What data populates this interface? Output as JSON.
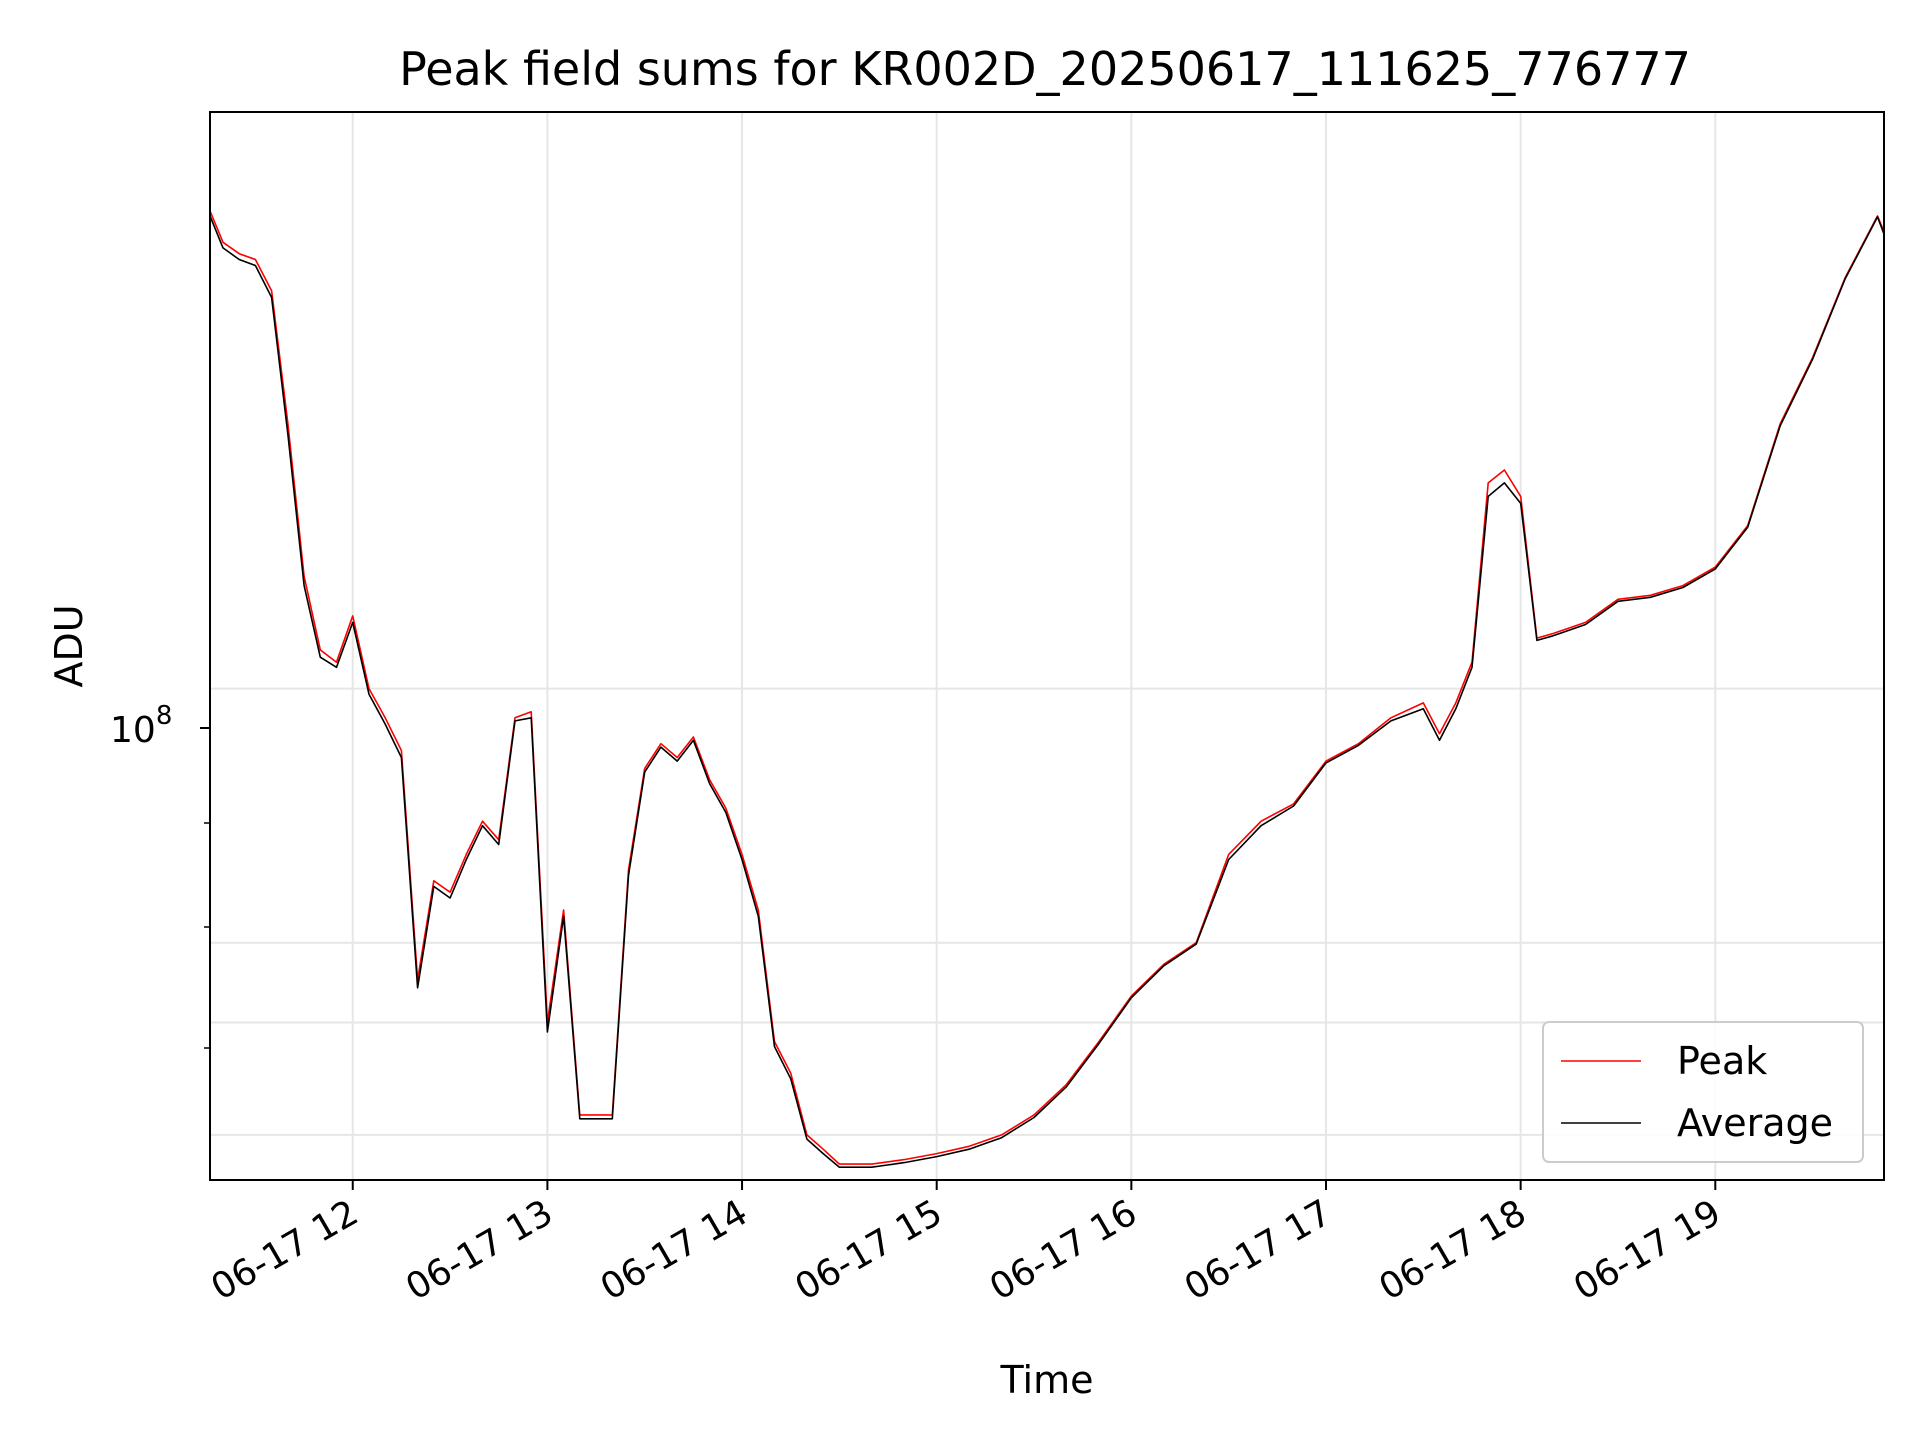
{
  "chart_data": {
    "type": "line",
    "title": "Peak field sums for KR002D_20250617_111625_776777",
    "xlabel": "Time",
    "ylabel": "ADU",
    "yscale": "log",
    "ylim": [
      17000000,
      800000000
    ],
    "xlim": [
      "06-17 11:16",
      "06-17 19:52"
    ],
    "x_ticks": [
      "06-17 12",
      "06-17 13",
      "06-17 14",
      "06-17 15",
      "06-17 16",
      "06-17 17",
      "06-17 18",
      "06-17 19"
    ],
    "y_tick_label": "10",
    "y_tick_exponent": "8",
    "grid": true,
    "legend_position": "lower right",
    "colors": {
      "Peak": "#ff0000",
      "Average": "#000000"
    },
    "x": [
      "06-17 11:16",
      "06-17 11:20",
      "06-17 11:25",
      "06-17 11:30",
      "06-17 11:35",
      "06-17 11:40",
      "06-17 11:45",
      "06-17 11:50",
      "06-17 11:55",
      "06-17 12:00",
      "06-17 12:05",
      "06-17 12:10",
      "06-17 12:15",
      "06-17 12:20",
      "06-17 12:25",
      "06-17 12:30",
      "06-17 12:35",
      "06-17 12:40",
      "06-17 12:45",
      "06-17 12:50",
      "06-17 12:55",
      "06-17 13:00",
      "06-17 13:05",
      "06-17 13:10",
      "06-17 13:15",
      "06-17 13:20",
      "06-17 13:25",
      "06-17 13:30",
      "06-17 13:35",
      "06-17 13:40",
      "06-17 13:45",
      "06-17 13:50",
      "06-17 13:55",
      "06-17 14:00",
      "06-17 14:05",
      "06-17 14:10",
      "06-17 14:15",
      "06-17 14:20",
      "06-17 14:25",
      "06-17 14:30",
      "06-17 14:40",
      "06-17 14:50",
      "06-17 15:00",
      "06-17 15:10",
      "06-17 15:20",
      "06-17 15:30",
      "06-17 15:40",
      "06-17 15:50",
      "06-17 16:00",
      "06-17 16:10",
      "06-17 16:20",
      "06-17 16:30",
      "06-17 16:40",
      "06-17 16:50",
      "06-17 17:00",
      "06-17 17:10",
      "06-17 17:20",
      "06-17 17:30",
      "06-17 17:35",
      "06-17 17:40",
      "06-17 17:45",
      "06-17 17:50",
      "06-17 17:55",
      "06-17 18:00",
      "06-17 18:05",
      "06-17 18:10",
      "06-17 18:20",
      "06-17 18:30",
      "06-17 18:40",
      "06-17 18:50",
      "06-17 19:00",
      "06-17 19:10",
      "06-17 19:20",
      "06-17 19:30",
      "06-17 19:40",
      "06-17 19:50",
      "06-17 19:52"
    ],
    "series": [
      {
        "name": "Peak",
        "values": [
          560000000,
          500000000,
          480000000,
          470000000,
          420000000,
          260000000,
          150000000,
          115000000,
          110000000,
          130000000,
          100000000,
          90000000,
          80000000,
          35000000,
          50000000,
          48000000,
          55000000,
          62000000,
          58000000,
          90000000,
          92000000,
          30000000,
          45000000,
          21500000,
          21500000,
          21500000,
          52000000,
          75000000,
          82000000,
          78000000,
          84000000,
          72000000,
          65000000,
          55000000,
          45000000,
          28000000,
          25000000,
          20000000,
          19000000,
          18000000,
          18000000,
          18300000,
          18700000,
          19200000,
          20000000,
          21500000,
          24000000,
          28000000,
          33000000,
          37000000,
          40000000,
          55000000,
          62000000,
          66000000,
          77000000,
          82000000,
          90000000,
          95000000,
          85000000,
          95000000,
          110000000,
          210000000,
          220000000,
          200000000,
          120000000,
          122000000,
          127000000,
          138000000,
          140000000,
          145000000,
          155000000,
          180000000,
          260000000,
          330000000,
          440000000,
          550000000,
          520000000
        ]
      },
      {
        "name": "Average",
        "values": [
          550000000,
          490000000,
          470000000,
          460000000,
          410000000,
          250000000,
          145000000,
          112000000,
          108000000,
          127000000,
          98000000,
          88000000,
          78000000,
          34000000,
          49000000,
          47000000,
          54000000,
          61000000,
          57000000,
          89000000,
          90000000,
          29000000,
          44000000,
          21200000,
          21200000,
          21200000,
          51000000,
          74000000,
          81000000,
          77000000,
          83000000,
          71000000,
          64000000,
          54000000,
          44000000,
          27500000,
          24500000,
          19700000,
          18700000,
          17800000,
          17800000,
          18100000,
          18500000,
          19000000,
          19800000,
          21300000,
          23800000,
          27800000,
          32800000,
          36800000,
          39800000,
          54000000,
          61000000,
          65500000,
          76500000,
          81500000,
          89000000,
          93000000,
          83000000,
          93000000,
          108000000,
          200000000,
          210000000,
          195000000,
          119000000,
          121000000,
          126000000,
          137000000,
          139000000,
          144000000,
          154000000,
          179000000,
          258000000,
          328000000,
          438000000,
          548000000,
          515000000
        ]
      }
    ]
  }
}
